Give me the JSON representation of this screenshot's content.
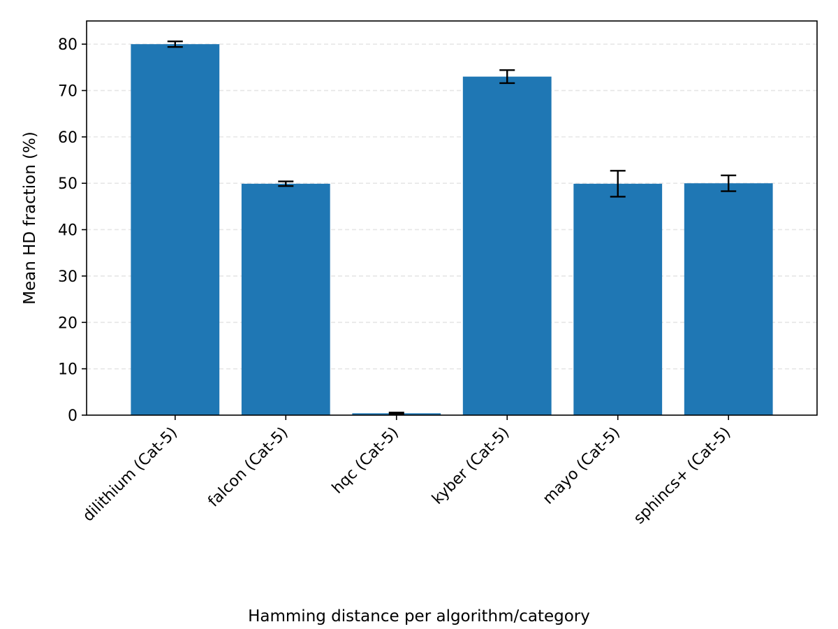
{
  "chart_data": {
    "type": "bar",
    "title": "",
    "xlabel": "Hamming distance per algorithm/category",
    "ylabel": "Mean HD fraction (%)",
    "categories": [
      "dilithium (Cat-5)",
      "falcon (Cat-5)",
      "hqc (Cat-5)",
      "kyber (Cat-5)",
      "mayo (Cat-5)",
      "sphincs+ (Cat-5)"
    ],
    "values": [
      80.0,
      49.9,
      0.4,
      73.0,
      49.9,
      50.0
    ],
    "errors": [
      0.6,
      0.5,
      0.15,
      1.4,
      2.8,
      1.7
    ],
    "ylim": [
      0,
      85
    ],
    "yticks": [
      0,
      10,
      20,
      30,
      40,
      50,
      60,
      70,
      80
    ],
    "grid": "y, dashed",
    "legend": "none",
    "colors": {
      "bar": "#1f77b4",
      "errorbar": "#000000",
      "grid": "#e6e6e6",
      "axis": "#000000"
    }
  }
}
